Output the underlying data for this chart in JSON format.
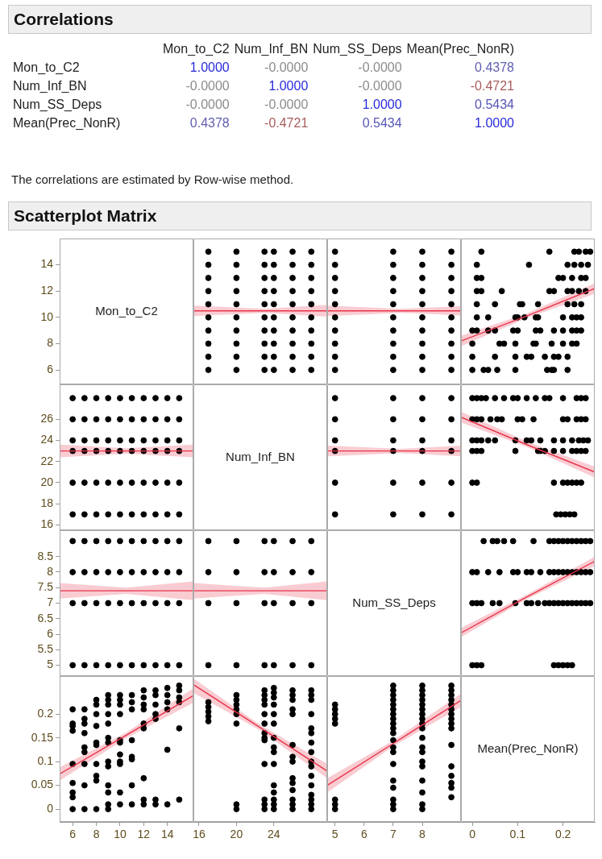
{
  "chart_data": [
    {
      "type": "heatmap",
      "title": "Correlations",
      "categories": [
        "Mon_to_C2",
        "Num_Inf_BN",
        "Num_SS_Deps",
        "Mean(Prec_NonR)"
      ],
      "y_categories": [
        "Mon_to_C2",
        "Num_Inf_BN",
        "Num_SS_Deps",
        "Mean(Prec_NonR)"
      ],
      "cells": [
        [
          1,
          0,
          0,
          0.4378
        ],
        [
          0,
          1,
          0,
          -0.4721
        ],
        [
          0,
          0,
          1,
          0.5434
        ],
        [
          0.4378,
          -0.4721,
          0.5434,
          1
        ]
      ],
      "cell_labels": [
        [
          "1.0000",
          "-0.0000",
          "-0.0000",
          "0.4378"
        ],
        [
          "-0.0000",
          "1.0000",
          "-0.0000",
          "-0.4721"
        ],
        [
          "-0.0000",
          "-0.0000",
          "1.0000",
          "0.5434"
        ],
        [
          "0.4378",
          "-0.4721",
          "0.5434",
          "1.0000"
        ]
      ],
      "annotations": [
        "The correlations are estimated by Row-wise method."
      ]
    },
    {
      "type": "scatter",
      "title": "Scatterplot Matrix",
      "annotations": [
        "Mon_to_C2"
      ],
      "xlim": [
        4.9,
        16.2
      ],
      "ylim": [
        4.9,
        16
      ],
      "yticks": [
        6,
        8,
        10,
        12,
        14
      ],
      "tick_labels": "y"
    },
    {
      "type": "scatter",
      "marker": "circle",
      "xlim": [
        15.4,
        29.7
      ],
      "ylim": [
        4.9,
        16
      ],
      "tick_labels": false,
      "series": [
        {
          "type": "scatter",
          "color": "#000000",
          "x": [
            17,
            17,
            17,
            17,
            17,
            17,
            17,
            17,
            17,
            17,
            20,
            20,
            20,
            20,
            20,
            20,
            20,
            20,
            20,
            20,
            23,
            23,
            23,
            23,
            23,
            23,
            23,
            23,
            23,
            23,
            24,
            24,
            24,
            24,
            24,
            24,
            24,
            24,
            24,
            24,
            26,
            26,
            26,
            26,
            26,
            26,
            26,
            26,
            26,
            26,
            28,
            28,
            28,
            28,
            28,
            28,
            28,
            28,
            28,
            28
          ],
          "values": [
            6,
            7,
            8,
            9,
            10,
            11,
            12,
            13,
            14,
            15,
            6,
            7,
            8,
            9,
            10,
            11,
            12,
            13,
            14,
            15,
            6,
            7,
            8,
            9,
            10,
            11,
            12,
            13,
            14,
            15,
            6,
            7,
            8,
            9,
            10,
            11,
            12,
            13,
            14,
            15,
            6,
            7,
            8,
            9,
            10,
            11,
            12,
            13,
            14,
            15,
            6,
            7,
            8,
            9,
            10,
            11,
            12,
            13,
            14,
            15
          ]
        },
        {
          "type": "line",
          "color": "#e8344a",
          "marker": "none",
          "x": [
            15.4,
            23,
            29.7
          ],
          "values": [
            10.5,
            10.5,
            10.5
          ],
          "lower": [
            10.1,
            10.35,
            10.05
          ],
          "upper": [
            10.9,
            10.65,
            10.95
          ]
        }
      ]
    },
    {
      "type": "scatter",
      "marker": "circle",
      "xlim": [
        4.73,
        9.33
      ],
      "ylim": [
        4.9,
        16
      ],
      "tick_labels": false,
      "series": [
        {
          "type": "scatter",
          "color": "#000000",
          "x": [
            5,
            5,
            5,
            5,
            5,
            5,
            5,
            5,
            5,
            5,
            7,
            7,
            7,
            7,
            7,
            7,
            7,
            7,
            7,
            7,
            8,
            8,
            8,
            8,
            8,
            8,
            8,
            8,
            8,
            8,
            9,
            9,
            9,
            9,
            9,
            9,
            9,
            9,
            9,
            9
          ],
          "values": [
            6,
            7,
            8,
            9,
            10,
            11,
            12,
            13,
            14,
            15,
            6,
            7,
            8,
            9,
            10,
            11,
            12,
            13,
            14,
            15,
            6,
            7,
            8,
            9,
            10,
            11,
            12,
            13,
            14,
            15,
            6,
            7,
            8,
            9,
            10,
            11,
            12,
            13,
            14,
            15
          ]
        },
        {
          "type": "line",
          "color": "#e8344a",
          "marker": "none",
          "x": [
            4.73,
            7.25,
            9.33
          ],
          "values": [
            10.5,
            10.5,
            10.5
          ],
          "lower": [
            10.1,
            10.35,
            10.15
          ],
          "upper": [
            10.9,
            10.65,
            10.85
          ]
        }
      ]
    },
    {
      "type": "scatter",
      "marker": "circle",
      "xlim": [
        -0.025,
        0.27
      ],
      "ylim": [
        4.9,
        16
      ],
      "tick_labels": false,
      "series": [
        {
          "type": "scatter",
          "color": "#000000",
          "x": [
            0.21,
            0.18,
            0.175,
            0.165,
            0.095,
            0.055,
            0.035,
            0.025,
            0,
            0.21,
            0.19,
            0.18,
            0.16,
            0.13,
            0.12,
            0.095,
            0.05,
            0,
            0.23,
            0.22,
            0.2,
            0.175,
            0.14,
            0.135,
            0.095,
            0.07,
            0.06,
            0,
            0.24,
            0.23,
            0.22,
            0.2,
            0.18,
            0.15,
            0.14,
            0.1,
            0.09,
            0.05,
            0.035,
            0.01,
            0,
            0.24,
            0.23,
            0.22,
            0.2,
            0.145,
            0.14,
            0.115,
            0.1,
            0.095,
            0.035,
            0.01,
            0.24,
            0.225,
            0.21,
            0.145,
            0.11,
            0.105,
            0.05,
            0.01,
            0.25,
            0.235,
            0.22,
            0.21,
            0.18,
            0.17,
            0.065,
            0.02,
            0.01,
            0.25,
            0.24,
            0.22,
            0.2,
            0.19,
            0.02,
            0.01,
            0.255,
            0.24,
            0.225,
            0.21,
            0.125,
            0.01,
            0.26,
            0.25,
            0.235,
            0.225,
            0.17,
            0.02
          ],
          "values": [
            6,
            6,
            6,
            6,
            6,
            6,
            6,
            6,
            6,
            7,
            7,
            7,
            7,
            7,
            7,
            7,
            7,
            7,
            8,
            8,
            8,
            8,
            8,
            8,
            8,
            8,
            8,
            8,
            9,
            9,
            9,
            9,
            9,
            9,
            9,
            9,
            9,
            9,
            9,
            9,
            9,
            10,
            10,
            10,
            10,
            10,
            10,
            10,
            10,
            10,
            10,
            10,
            11,
            11,
            11,
            11,
            11,
            11,
            11,
            11,
            12,
            12,
            12,
            12,
            12,
            12,
            12,
            12,
            12,
            13,
            13,
            13,
            13,
            13,
            13,
            13,
            14,
            14,
            14,
            14,
            14,
            14,
            15,
            15,
            15,
            15,
            15,
            15
          ]
        },
        {
          "type": "line",
          "color": "#e8344a",
          "marker": "none",
          "x": [
            -0.025,
            0.12,
            0.27
          ],
          "values": [
            8.2,
            10.1,
            12.2
          ],
          "lower": [
            7.8,
            9.95,
            11.8
          ],
          "upper": [
            8.6,
            10.3,
            12.6
          ]
        }
      ]
    },
    {
      "type": "scatter",
      "marker": "circle",
      "xlim": [
        4.9,
        16.2
      ],
      "ylim": [
        15.5,
        29.3
      ],
      "yticks": [
        16,
        18,
        20,
        22,
        24,
        26
      ],
      "tick_labels": "y",
      "series": [
        {
          "type": "scatter",
          "color": "#000000",
          "x": [
            6,
            7,
            8,
            9,
            10,
            11,
            12,
            13,
            14,
            15,
            6,
            7,
            8,
            9,
            10,
            11,
            12,
            13,
            14,
            15,
            6,
            7,
            8,
            9,
            10,
            11,
            12,
            13,
            14,
            15,
            6,
            7,
            8,
            9,
            10,
            11,
            12,
            13,
            14,
            15,
            6,
            7,
            8,
            9,
            10,
            11,
            12,
            13,
            14,
            15,
            6,
            7,
            8,
            9,
            10,
            11,
            12,
            13,
            14,
            15
          ],
          "values": [
            17,
            17,
            17,
            17,
            17,
            17,
            17,
            17,
            17,
            17,
            20,
            20,
            20,
            20,
            20,
            20,
            20,
            20,
            20,
            20,
            23,
            23,
            23,
            23,
            23,
            23,
            23,
            23,
            23,
            23,
            24,
            24,
            24,
            24,
            24,
            24,
            24,
            24,
            24,
            24,
            26,
            26,
            26,
            26,
            26,
            26,
            26,
            26,
            26,
            26,
            28,
            28,
            28,
            28,
            28,
            28,
            28,
            28,
            28,
            28
          ]
        },
        {
          "type": "line",
          "color": "#e8344a",
          "marker": "none",
          "x": [
            4.9,
            10.5,
            16.2
          ],
          "values": [
            23,
            23,
            23
          ],
          "lower": [
            22.4,
            22.75,
            22.4
          ],
          "upper": [
            23.6,
            23.25,
            23.6
          ]
        }
      ]
    },
    {
      "type": "other",
      "annotations": [
        "Num_Inf_BN"
      ]
    },
    {
      "type": "scatter",
      "marker": "circle",
      "xlim": [
        4.73,
        9.33
      ],
      "ylim": [
        15.5,
        29.3
      ],
      "tick_labels": false,
      "series": [
        {
          "type": "scatter",
          "color": "#000000",
          "x": [
            5,
            5,
            5,
            5,
            5,
            5,
            7,
            7,
            7,
            7,
            7,
            7,
            8,
            8,
            8,
            8,
            8,
            8,
            9,
            9,
            9,
            9,
            9,
            9
          ],
          "values": [
            17,
            20,
            23,
            24,
            26,
            28,
            17,
            20,
            23,
            24,
            26,
            28,
            17,
            20,
            23,
            24,
            26,
            28,
            17,
            20,
            23,
            24,
            26,
            28
          ]
        },
        {
          "type": "line",
          "color": "#e8344a",
          "marker": "none",
          "x": [
            4.73,
            7.25,
            9.33
          ],
          "values": [
            23,
            23,
            23
          ],
          "lower": [
            22.5,
            22.8,
            22.5
          ],
          "upper": [
            23.5,
            23.2,
            23.5
          ]
        }
      ]
    },
    {
      "type": "scatter",
      "marker": "circle",
      "xlim": [
        -0.025,
        0.27
      ],
      "ylim": [
        15.5,
        29.3
      ],
      "tick_labels": false,
      "series": [
        {
          "type": "scatter",
          "color": "#000000",
          "x": [
            0.225,
            0.215,
            0.205,
            0.195,
            0.185,
            0.24,
            0.23,
            0.22,
            0.21,
            0.2,
            0.18,
            0.01,
            0,
            0.25,
            0.24,
            0.23,
            0.22,
            0.2,
            0.18,
            0.16,
            0.15,
            0.145,
            0.095,
            0.02,
            0.01,
            0,
            0.255,
            0.245,
            0.235,
            0.22,
            0.2,
            0.18,
            0.15,
            0.13,
            0.12,
            0.095,
            0.05,
            0.035,
            0.02,
            0.01,
            0,
            0.25,
            0.24,
            0.23,
            0.21,
            0.2,
            0.135,
            0.11,
            0.1,
            0.065,
            0.055,
            0.04,
            0.02,
            0.01,
            0,
            0.25,
            0.24,
            0.23,
            0.2,
            0.17,
            0.16,
            0.14,
            0.12,
            0.1,
            0.09,
            0.07,
            0.05,
            0.03,
            0.02,
            0.01,
            0
          ],
          "values": [
            17,
            17,
            17,
            17,
            17,
            20,
            20,
            20,
            20,
            20,
            20,
            20,
            20,
            23,
            23,
            23,
            23,
            23,
            23,
            23,
            23,
            23,
            23,
            23,
            23,
            23,
            24,
            24,
            24,
            24,
            24,
            24,
            24,
            24,
            24,
            24,
            24,
            24,
            24,
            24,
            24,
            26,
            26,
            26,
            26,
            26,
            26,
            26,
            26,
            26,
            26,
            26,
            26,
            26,
            26,
            28,
            28,
            28,
            28,
            28,
            28,
            28,
            28,
            28,
            28,
            28,
            28,
            28,
            28,
            28,
            28
          ]
        },
        {
          "type": "line",
          "color": "#e8344a",
          "marker": "none",
          "x": [
            -0.025,
            0.12,
            0.27
          ],
          "values": [
            26.2,
            23.6,
            21
          ],
          "lower": [
            25.7,
            23.4,
            20.5
          ],
          "upper": [
            26.7,
            23.9,
            21.5
          ]
        }
      ]
    },
    {
      "type": "scatter",
      "marker": "circle",
      "xlim": [
        4.9,
        16.2
      ],
      "ylim": [
        4.65,
        9.35
      ],
      "yticks": [
        5,
        5.5,
        6,
        6.5,
        7,
        7.5,
        8,
        8.5
      ],
      "tick_labels": "y",
      "series": [
        {
          "type": "scatter",
          "color": "#000000",
          "x": [
            6,
            7,
            8,
            9,
            10,
            11,
            12,
            13,
            14,
            15,
            6,
            7,
            8,
            9,
            10,
            11,
            12,
            13,
            14,
            15,
            6,
            7,
            8,
            9,
            10,
            11,
            12,
            13,
            14,
            15,
            6,
            7,
            8,
            9,
            10,
            11,
            12,
            13,
            14,
            15
          ],
          "values": [
            5,
            5,
            5,
            5,
            5,
            5,
            5,
            5,
            5,
            5,
            7,
            7,
            7,
            7,
            7,
            7,
            7,
            7,
            7,
            7,
            8,
            8,
            8,
            8,
            8,
            8,
            8,
            8,
            8,
            8,
            9,
            9,
            9,
            9,
            9,
            9,
            9,
            9,
            9,
            9
          ]
        },
        {
          "type": "line",
          "color": "#e8344a",
          "marker": "none",
          "x": [
            4.9,
            10.5,
            16.2
          ],
          "values": [
            7.4,
            7.4,
            7.4
          ],
          "lower": [
            7.15,
            7.3,
            7.1
          ],
          "upper": [
            7.65,
            7.5,
            7.7
          ]
        }
      ]
    },
    {
      "type": "scatter",
      "marker": "circle",
      "xlim": [
        15.4,
        29.7
      ],
      "ylim": [
        4.65,
        9.35
      ],
      "tick_labels": false,
      "series": [
        {
          "type": "scatter",
          "color": "#000000",
          "x": [
            17,
            20,
            23,
            24,
            26,
            28,
            17,
            20,
            23,
            24,
            26,
            28,
            17,
            20,
            23,
            24,
            26,
            28,
            17,
            20,
            23,
            24,
            26,
            28
          ],
          "values": [
            5,
            5,
            5,
            5,
            5,
            5,
            7,
            7,
            7,
            7,
            7,
            7,
            8,
            8,
            8,
            8,
            8,
            8,
            9,
            9,
            9,
            9,
            9,
            9
          ]
        },
        {
          "type": "line",
          "color": "#e8344a",
          "marker": "none",
          "x": [
            15.4,
            23,
            29.7
          ],
          "values": [
            7.4,
            7.4,
            7.4
          ],
          "lower": [
            7.15,
            7.3,
            7.1
          ],
          "upper": [
            7.65,
            7.5,
            7.7
          ]
        }
      ]
    },
    {
      "type": "other",
      "annotations": [
        "Num_SS_Deps"
      ]
    },
    {
      "type": "scatter",
      "marker": "circle",
      "xlim": [
        -0.025,
        0.27
      ],
      "ylim": [
        4.65,
        9.35
      ],
      "tick_labels": false,
      "series": [
        {
          "type": "scatter",
          "color": "#000000",
          "x": [
            0.22,
            0.21,
            0.2,
            0.19,
            0.18,
            0.02,
            0.01,
            0,
            0.26,
            0.25,
            0.24,
            0.23,
            0.22,
            0.21,
            0.2,
            0.19,
            0.18,
            0.17,
            0.16,
            0.145,
            0.13,
            0.12,
            0.095,
            0.06,
            0.045,
            0.02,
            0.01,
            0,
            0.26,
            0.25,
            0.24,
            0.23,
            0.22,
            0.21,
            0.2,
            0.19,
            0.18,
            0.17,
            0.15,
            0.13,
            0.12,
            0.1,
            0.09,
            0.06,
            0.035,
            0.01,
            0,
            0.26,
            0.25,
            0.24,
            0.23,
            0.22,
            0.21,
            0.2,
            0.19,
            0.18,
            0.17,
            0.135,
            0.09,
            0.07,
            0.055,
            0.045,
            0.025
          ],
          "values": [
            5,
            5,
            5,
            5,
            5,
            5,
            5,
            5,
            7,
            7,
            7,
            7,
            7,
            7,
            7,
            7,
            7,
            7,
            7,
            7,
            7,
            7,
            7,
            7,
            7,
            7,
            7,
            7,
            8,
            8,
            8,
            8,
            8,
            8,
            8,
            8,
            8,
            8,
            8,
            8,
            8,
            8,
            8,
            8,
            8,
            8,
            8,
            9,
            9,
            9,
            9,
            9,
            9,
            9,
            9,
            9,
            9,
            9,
            9,
            9,
            9,
            9,
            9
          ]
        },
        {
          "type": "line",
          "color": "#e8344a",
          "marker": "none",
          "x": [
            -0.025,
            0.12,
            0.27
          ],
          "values": [
            6.04,
            7.2,
            8.35
          ],
          "lower": [
            5.9,
            7.13,
            8.2
          ],
          "upper": [
            6.2,
            7.27,
            8.5
          ]
        }
      ]
    },
    {
      "type": "scatter",
      "marker": "circle",
      "xlim": [
        4.9,
        16.2
      ],
      "ylim": [
        -0.027,
        0.28
      ],
      "xticks": [
        6,
        8,
        10,
        12,
        14
      ],
      "yticks": [
        0,
        0.05,
        0.1,
        0.15,
        0.2
      ],
      "series": [
        {
          "type": "scatter",
          "color": "#000000",
          "x": [
            6,
            6,
            6,
            6,
            6,
            6,
            6,
            6,
            6,
            7,
            7,
            7,
            7,
            7,
            7,
            7,
            7,
            7,
            8,
            8,
            8,
            8,
            8,
            8,
            8,
            8,
            8,
            8,
            9,
            9,
            9,
            9,
            9,
            9,
            9,
            9,
            9,
            9,
            9,
            9,
            9,
            10,
            10,
            10,
            10,
            10,
            10,
            10,
            10,
            10,
            10,
            10,
            11,
            11,
            11,
            11,
            11,
            11,
            11,
            11,
            12,
            12,
            12,
            12,
            12,
            12,
            12,
            12,
            12,
            13,
            13,
            13,
            13,
            13,
            13,
            13,
            14,
            14,
            14,
            14,
            14,
            14,
            15,
            15,
            15,
            15,
            15,
            15
          ],
          "values": [
            0.21,
            0.18,
            0.175,
            0.165,
            0.095,
            0.055,
            0.035,
            0.025,
            0,
            0.21,
            0.19,
            0.18,
            0.16,
            0.13,
            0.12,
            0.095,
            0.05,
            0,
            0.23,
            0.22,
            0.2,
            0.175,
            0.14,
            0.135,
            0.095,
            0.07,
            0.06,
            0,
            0.24,
            0.23,
            0.22,
            0.2,
            0.18,
            0.15,
            0.14,
            0.1,
            0.09,
            0.05,
            0.035,
            0.01,
            0,
            0.24,
            0.23,
            0.22,
            0.2,
            0.145,
            0.14,
            0.115,
            0.1,
            0.095,
            0.035,
            0.01,
            0.24,
            0.225,
            0.21,
            0.145,
            0.11,
            0.105,
            0.05,
            0.01,
            0.25,
            0.235,
            0.22,
            0.21,
            0.18,
            0.17,
            0.065,
            0.02,
            0.01,
            0.25,
            0.24,
            0.22,
            0.2,
            0.19,
            0.02,
            0.01,
            0.255,
            0.24,
            0.225,
            0.21,
            0.125,
            0.01,
            0.26,
            0.25,
            0.235,
            0.225,
            0.17,
            0.02
          ]
        },
        {
          "type": "line",
          "color": "#e8344a",
          "marker": "none",
          "x": [
            4.9,
            10.5,
            16.2
          ],
          "values": [
            0.074,
            0.155,
            0.239
          ],
          "lower": [
            0.06,
            0.149,
            0.224
          ],
          "upper": [
            0.088,
            0.161,
            0.254
          ]
        }
      ]
    },
    {
      "type": "scatter",
      "marker": "circle",
      "xlim": [
        15.4,
        29.7
      ],
      "ylim": [
        -0.027,
        0.28
      ],
      "xticks": [
        16,
        20,
        24
      ],
      "tick_labels": "x",
      "series": [
        {
          "type": "scatter",
          "color": "#000000",
          "x": [
            17,
            17,
            17,
            17,
            17,
            20,
            20,
            20,
            20,
            20,
            20,
            20,
            20,
            23,
            23,
            23,
            23,
            23,
            23,
            23,
            23,
            23,
            23,
            23,
            23,
            23,
            24,
            24,
            24,
            24,
            24,
            24,
            24,
            24,
            24,
            24,
            24,
            24,
            24,
            24,
            24,
            26,
            26,
            26,
            26,
            26,
            26,
            26,
            26,
            26,
            26,
            26,
            26,
            26,
            26,
            28,
            28,
            28,
            28,
            28,
            28,
            28,
            28,
            28,
            28,
            28,
            28,
            28,
            28,
            28,
            28
          ],
          "values": [
            0.225,
            0.215,
            0.205,
            0.195,
            0.185,
            0.24,
            0.23,
            0.22,
            0.21,
            0.2,
            0.18,
            0.01,
            0,
            0.25,
            0.24,
            0.23,
            0.22,
            0.2,
            0.18,
            0.16,
            0.15,
            0.145,
            0.095,
            0.02,
            0.01,
            0,
            0.255,
            0.245,
            0.235,
            0.22,
            0.2,
            0.18,
            0.15,
            0.13,
            0.12,
            0.095,
            0.05,
            0.035,
            0.02,
            0.01,
            0,
            0.25,
            0.24,
            0.23,
            0.21,
            0.2,
            0.135,
            0.11,
            0.1,
            0.065,
            0.055,
            0.04,
            0.02,
            0.01,
            0,
            0.25,
            0.24,
            0.23,
            0.2,
            0.17,
            0.16,
            0.14,
            0.12,
            0.1,
            0.09,
            0.07,
            0.05,
            0.03,
            0.02,
            0.01,
            0
          ]
        },
        {
          "type": "line",
          "color": "#e8344a",
          "marker": "none",
          "x": [
            15.4,
            22.5,
            29.7
          ],
          "values": [
            0.262,
            0.172,
            0.08
          ],
          "lower": [
            0.245,
            0.166,
            0.065
          ],
          "upper": [
            0.275,
            0.178,
            0.095
          ]
        }
      ]
    },
    {
      "type": "scatter",
      "marker": "circle",
      "xlim": [
        4.73,
        9.33
      ],
      "ylim": [
        -0.027,
        0.28
      ],
      "xticks": [
        5,
        6,
        7,
        8
      ],
      "tick_labels": "x",
      "series": [
        {
          "type": "scatter",
          "color": "#000000",
          "x": [
            5,
            5,
            5,
            5,
            5,
            5,
            5,
            5,
            7,
            7,
            7,
            7,
            7,
            7,
            7,
            7,
            7,
            7,
            7,
            7,
            7,
            7,
            7,
            7,
            7,
            7,
            7,
            7,
            8,
            8,
            8,
            8,
            8,
            8,
            8,
            8,
            8,
            8,
            8,
            8,
            8,
            8,
            8,
            8,
            8,
            8,
            8,
            9,
            9,
            9,
            9,
            9,
            9,
            9,
            9,
            9,
            9,
            9,
            9,
            9,
            9,
            9,
            9
          ],
          "values": [
            0.22,
            0.21,
            0.2,
            0.19,
            0.18,
            0.02,
            0.01,
            0,
            0.26,
            0.25,
            0.24,
            0.23,
            0.22,
            0.21,
            0.2,
            0.19,
            0.18,
            0.17,
            0.16,
            0.145,
            0.13,
            0.12,
            0.095,
            0.06,
            0.045,
            0.02,
            0.01,
            0,
            0.26,
            0.25,
            0.24,
            0.23,
            0.22,
            0.21,
            0.2,
            0.19,
            0.18,
            0.17,
            0.15,
            0.13,
            0.12,
            0.1,
            0.09,
            0.06,
            0.035,
            0.01,
            0,
            0.26,
            0.25,
            0.24,
            0.23,
            0.22,
            0.21,
            0.2,
            0.19,
            0.18,
            0.17,
            0.135,
            0.09,
            0.07,
            0.055,
            0.045,
            0.025
          ]
        },
        {
          "type": "line",
          "color": "#e8344a",
          "marker": "none",
          "x": [
            4.73,
            7,
            9.33
          ],
          "values": [
            0.05,
            0.138,
            0.229
          ],
          "lower": [
            0.035,
            0.132,
            0.215
          ],
          "upper": [
            0.065,
            0.144,
            0.243
          ]
        }
      ]
    },
    {
      "type": "scatter",
      "annotations": [
        "Mean(Prec_NonR)"
      ],
      "xlim": [
        -0.025,
        0.27
      ],
      "ylim": [
        -0.027,
        0.28
      ],
      "xticks": [
        0,
        0.1,
        0.2
      ],
      "tick_labels": "x"
    }
  ]
}
